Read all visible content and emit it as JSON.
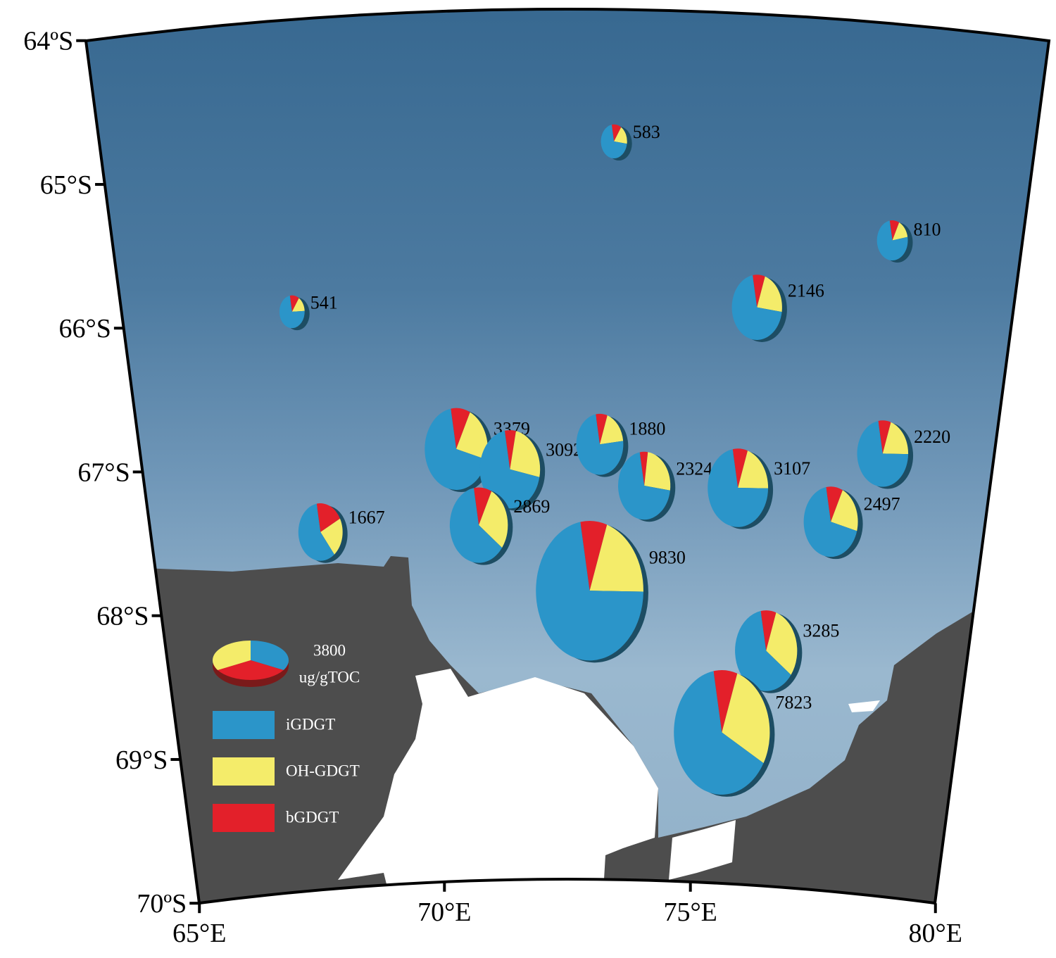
{
  "map": {
    "lat_ticks": [
      {
        "value": -64,
        "label": "64ºS"
      },
      {
        "value": -65,
        "label": "65°S"
      },
      {
        "value": -66,
        "label": "66°S"
      },
      {
        "value": -67,
        "label": "67°S"
      },
      {
        "value": -68,
        "label": "68°S"
      },
      {
        "value": -69,
        "label": "69°S"
      },
      {
        "value": -70,
        "label": "70ºS"
      }
    ],
    "lon_ticks": [
      {
        "value": 65,
        "label": "65°E"
      },
      {
        "value": 70,
        "label": "70°E"
      },
      {
        "value": 75,
        "label": "75°E"
      },
      {
        "value": 80,
        "label": "80°E"
      }
    ],
    "stations": [
      {
        "total": 583,
        "lon": 73.25,
        "lat": -64.91,
        "fractions": [
          70,
          18,
          12
        ]
      },
      {
        "total": 810,
        "lon": 77.87,
        "lat": -65.49,
        "fractions": [
          75,
          15,
          10
        ]
      },
      {
        "total": 541,
        "lon": 67.85,
        "lat": -66.01,
        "fractions": [
          73,
          15,
          12
        ]
      },
      {
        "total": 2146,
        "lon": 75.7,
        "lat": -66.02,
        "fractions": [
          70,
          22,
          8
        ]
      },
      {
        "total": 3379,
        "lon": 70.54,
        "lat": -67.02,
        "fractions": [
          68,
          22,
          10
        ]
      },
      {
        "total": 3092,
        "lon": 71.48,
        "lat": -67.17,
        "fractions": [
          69,
          25,
          6
        ]
      },
      {
        "total": 1880,
        "lon": 73.07,
        "lat": -67.0,
        "fractions": [
          74,
          18,
          8
        ]
      },
      {
        "total": 2324,
        "lon": 73.87,
        "lat": -67.28,
        "fractions": [
          70,
          25,
          5
        ]
      },
      {
        "total": 3107,
        "lon": 75.54,
        "lat": -67.27,
        "fractions": [
          72,
          20,
          8
        ]
      },
      {
        "total": 2220,
        "lon": 78.05,
        "lat": -66.96,
        "fractions": [
          72,
          20,
          8
        ]
      },
      {
        "total": 2497,
        "lon": 77.24,
        "lat": -67.46,
        "fractions": [
          68,
          22,
          10
        ]
      },
      {
        "total": 1667,
        "lon": 68.04,
        "lat": -67.54,
        "fractions": [
          58,
          22,
          20
        ]
      },
      {
        "total": 2869,
        "lon": 70.9,
        "lat": -67.55,
        "fractions": [
          62,
          28,
          10
        ]
      },
      {
        "total": 9830,
        "lon": 72.91,
        "lat": -68.01,
        "fractions": [
          72,
          20,
          8
        ]
      },
      {
        "total": 3285,
        "lon": 76.23,
        "lat": -68.38,
        "fractions": [
          62,
          30,
          8
        ]
      },
      {
        "total": 7823,
        "lon": 75.48,
        "lat": -68.96,
        "fractions": [
          64,
          28,
          8
        ]
      }
    ],
    "legend": {
      "scale_value": 3800,
      "scale_unit": "ug/gTOC",
      "items": [
        {
          "name": "iGDGT",
          "color": "#2b95c9"
        },
        {
          "name": "OH-GDGT",
          "color": "#f4ec6a"
        },
        {
          "name": "bGDGT",
          "color": "#e3202a"
        }
      ]
    }
  }
}
